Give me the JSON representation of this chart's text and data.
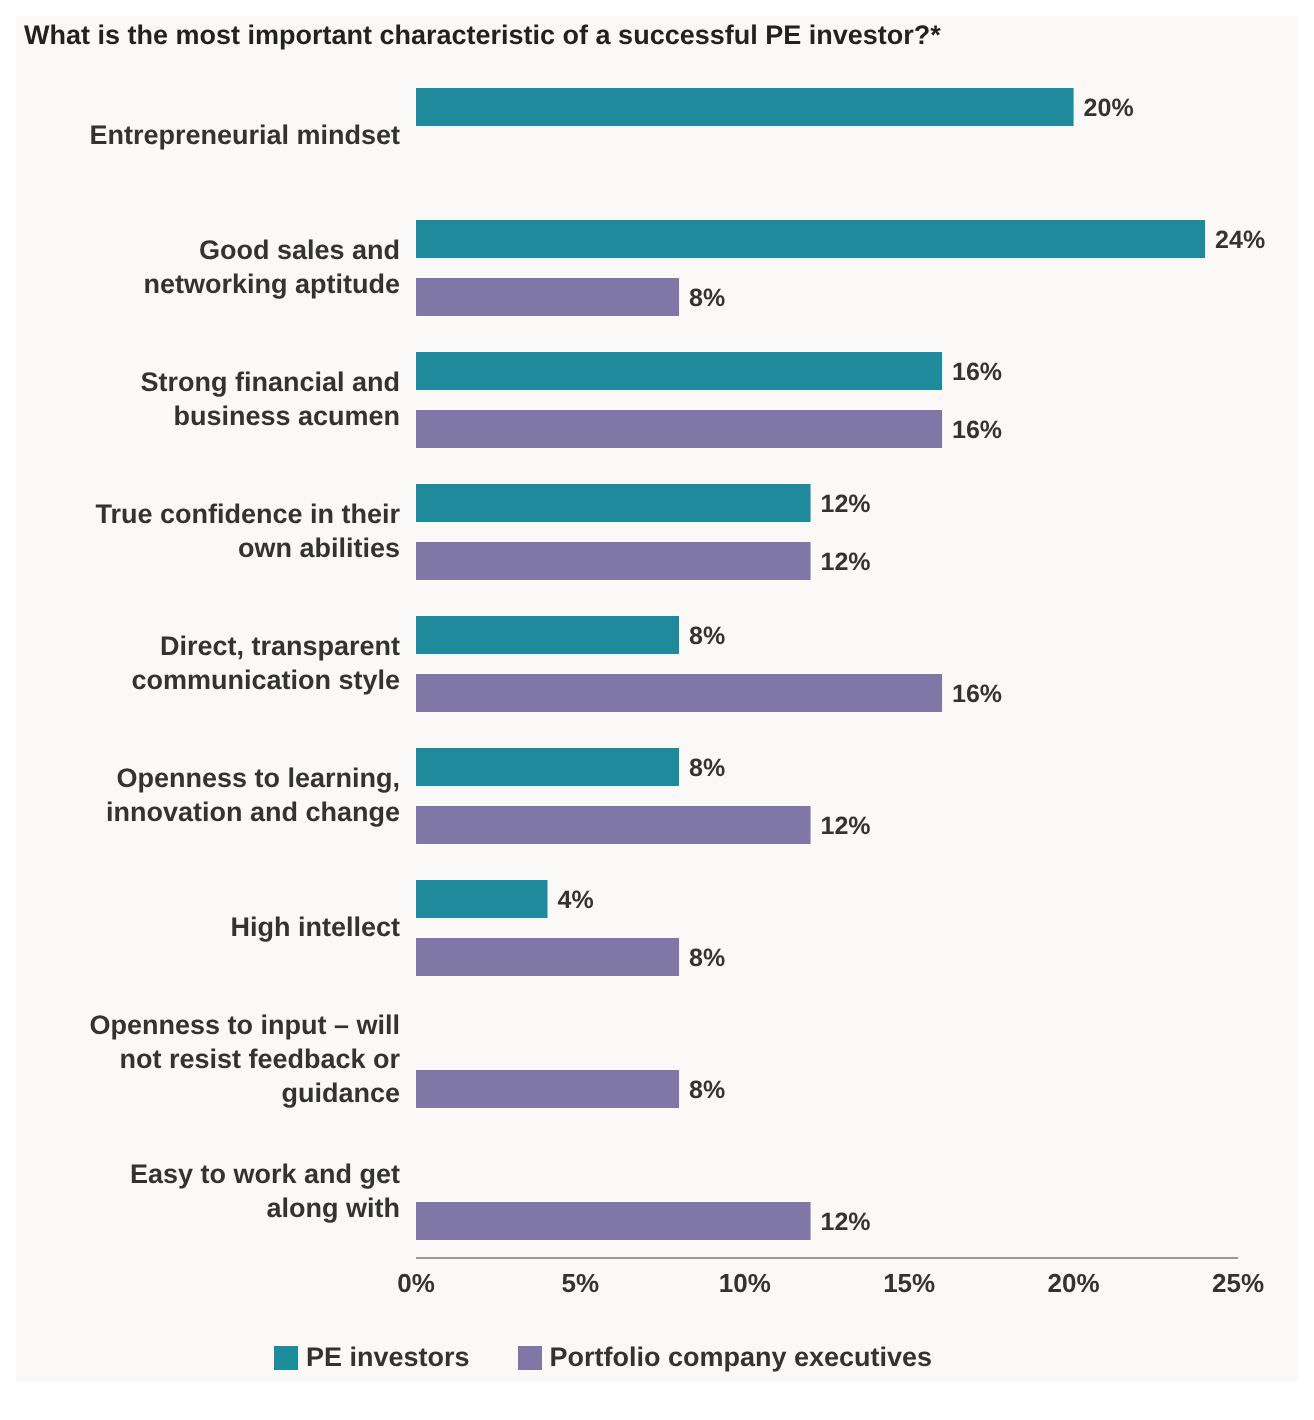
{
  "chart_data": {
    "type": "bar",
    "orientation": "horizontal",
    "title": "What is the most important characteristic of a successful PE investor?*",
    "categories": [
      "Entrepreneurial mindset",
      "Good sales and networking aptitude",
      "Strong financial and business acumen",
      "True confidence in their own abilities",
      "Direct, transparent communication style",
      "Openness to learning, innovation and change",
      "High intellect",
      "Openness to input – will not resist feedback or guidance",
      "Easy to work and get along with"
    ],
    "series": [
      {
        "name": "PE investors",
        "color": "#1f8a9c",
        "values": [
          20,
          24,
          16,
          12,
          8,
          8,
          4,
          null,
          null
        ],
        "value_labels": [
          "20%",
          "24%",
          "16%",
          "12%",
          "8%",
          "8%",
          "4%",
          null,
          null
        ]
      },
      {
        "name": "Portfolio company executives",
        "color": "#7f78a6",
        "values": [
          null,
          8,
          16,
          12,
          16,
          12,
          8,
          8,
          12
        ],
        "value_labels": [
          null,
          "8%",
          "16%",
          "12%",
          "16%",
          "12%",
          "8%",
          "8%",
          "12%"
        ]
      }
    ],
    "xlim": [
      0,
      25
    ],
    "xticks": [
      {
        "value": 0,
        "label": "0%"
      },
      {
        "value": 5,
        "label": "5%"
      },
      {
        "value": 10,
        "label": "10%"
      },
      {
        "value": 15,
        "label": "15%"
      },
      {
        "value": 20,
        "label": "20%"
      },
      {
        "value": 25,
        "label": "25%"
      }
    ],
    "grid": false,
    "legend": "bottom"
  }
}
